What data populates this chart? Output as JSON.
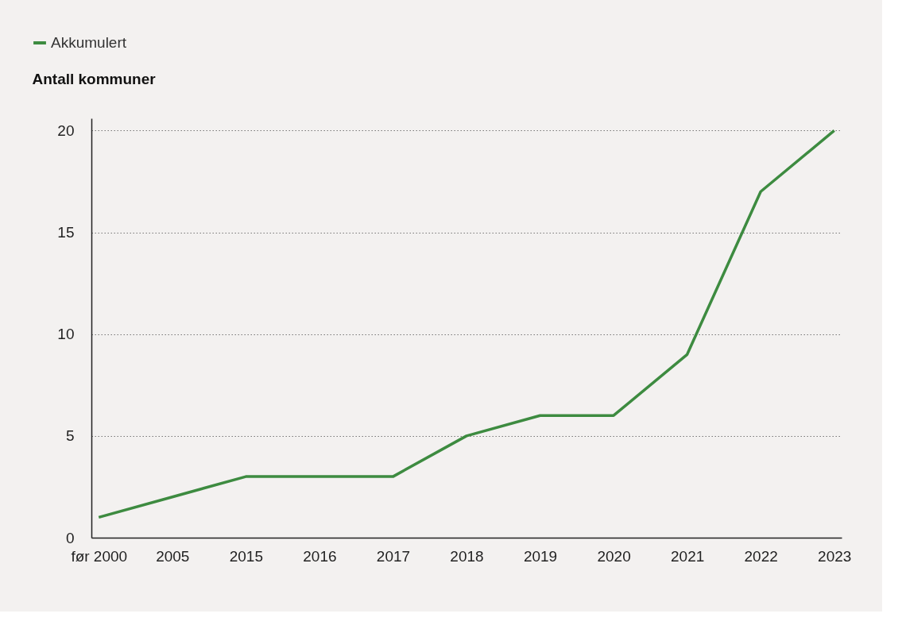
{
  "chart_data": {
    "type": "line",
    "ylabel": "Antall kommuner",
    "categories": [
      "før 2000",
      "2005",
      "2015",
      "2016",
      "2017",
      "2018",
      "2019",
      "2020",
      "2021",
      "2022",
      "2023"
    ],
    "series": [
      {
        "name": "Akkumulert",
        "color": "#3d8b40",
        "values": [
          1,
          2,
          3,
          3,
          3,
          5,
          6,
          6,
          9,
          17,
          20
        ]
      }
    ],
    "ylim": [
      0,
      20.6
    ],
    "yticks": [
      0,
      5,
      10,
      15,
      20
    ],
    "grid": "y",
    "legend": "top left",
    "line_style": "solid",
    "marker": "none"
  }
}
